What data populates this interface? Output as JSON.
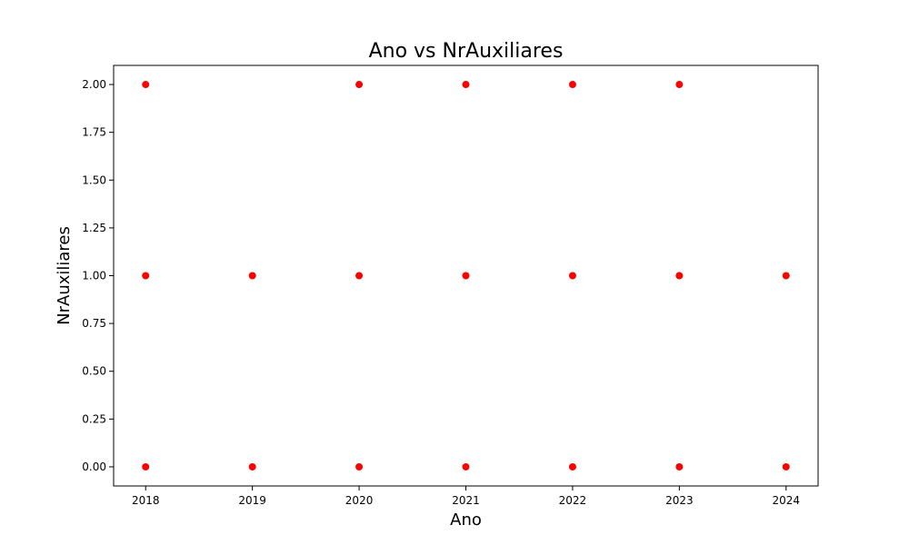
{
  "chart_data": {
    "type": "scatter",
    "title": "Ano vs NrAuxiliares",
    "xlabel": "Ano",
    "ylabel": "NrAuxiliares",
    "x_ticks": [
      "2018",
      "2019",
      "2020",
      "2021",
      "2022",
      "2023",
      "2024"
    ],
    "y_ticks": [
      "0.00",
      "0.25",
      "0.50",
      "0.75",
      "1.00",
      "1.25",
      "1.50",
      "1.75",
      "2.00"
    ],
    "xlim": [
      2017.7,
      2024.3
    ],
    "ylim": [
      -0.1,
      2.1
    ],
    "grid": false,
    "marker_color": "#ff0000",
    "points": [
      {
        "x": 2018,
        "y": 2
      },
      {
        "x": 2018,
        "y": 1
      },
      {
        "x": 2018,
        "y": 0
      },
      {
        "x": 2019,
        "y": 1
      },
      {
        "x": 2019,
        "y": 0
      },
      {
        "x": 2020,
        "y": 2
      },
      {
        "x": 2020,
        "y": 1
      },
      {
        "x": 2020,
        "y": 0
      },
      {
        "x": 2021,
        "y": 2
      },
      {
        "x": 2021,
        "y": 1
      },
      {
        "x": 2021,
        "y": 0
      },
      {
        "x": 2022,
        "y": 2
      },
      {
        "x": 2022,
        "y": 1
      },
      {
        "x": 2022,
        "y": 0
      },
      {
        "x": 2023,
        "y": 2
      },
      {
        "x": 2023,
        "y": 1
      },
      {
        "x": 2023,
        "y": 0
      },
      {
        "x": 2024,
        "y": 1
      },
      {
        "x": 2024,
        "y": 0
      }
    ]
  }
}
